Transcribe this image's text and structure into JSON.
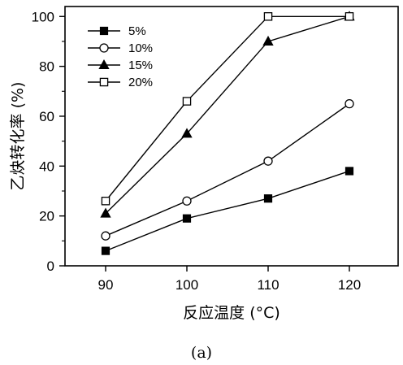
{
  "chart_data": {
    "type": "line",
    "x": [
      90,
      100,
      110,
      120
    ],
    "xlabel": "反应温度 (°C)",
    "ylabel": "乙炔转化率 (%)",
    "xlim": [
      85,
      126
    ],
    "ylim": [
      0,
      104
    ],
    "xticks": [
      90,
      100,
      110,
      120
    ],
    "yticks": [
      0,
      20,
      40,
      60,
      80,
      100
    ],
    "grid": false,
    "legend_position": "top-left",
    "caption": "(a)",
    "series": [
      {
        "name": "5%",
        "marker": "filled-square",
        "values": [
          6,
          19,
          27,
          38
        ]
      },
      {
        "name": "10%",
        "marker": "open-circle",
        "values": [
          12,
          26,
          42,
          65
        ]
      },
      {
        "name": "15%",
        "marker": "filled-triangle",
        "values": [
          21,
          53,
          90,
          100
        ]
      },
      {
        "name": "20%",
        "marker": "open-square",
        "values": [
          26,
          66,
          100,
          100
        ]
      }
    ],
    "colors": {
      "line": "#000000",
      "background": "#ffffff"
    }
  }
}
